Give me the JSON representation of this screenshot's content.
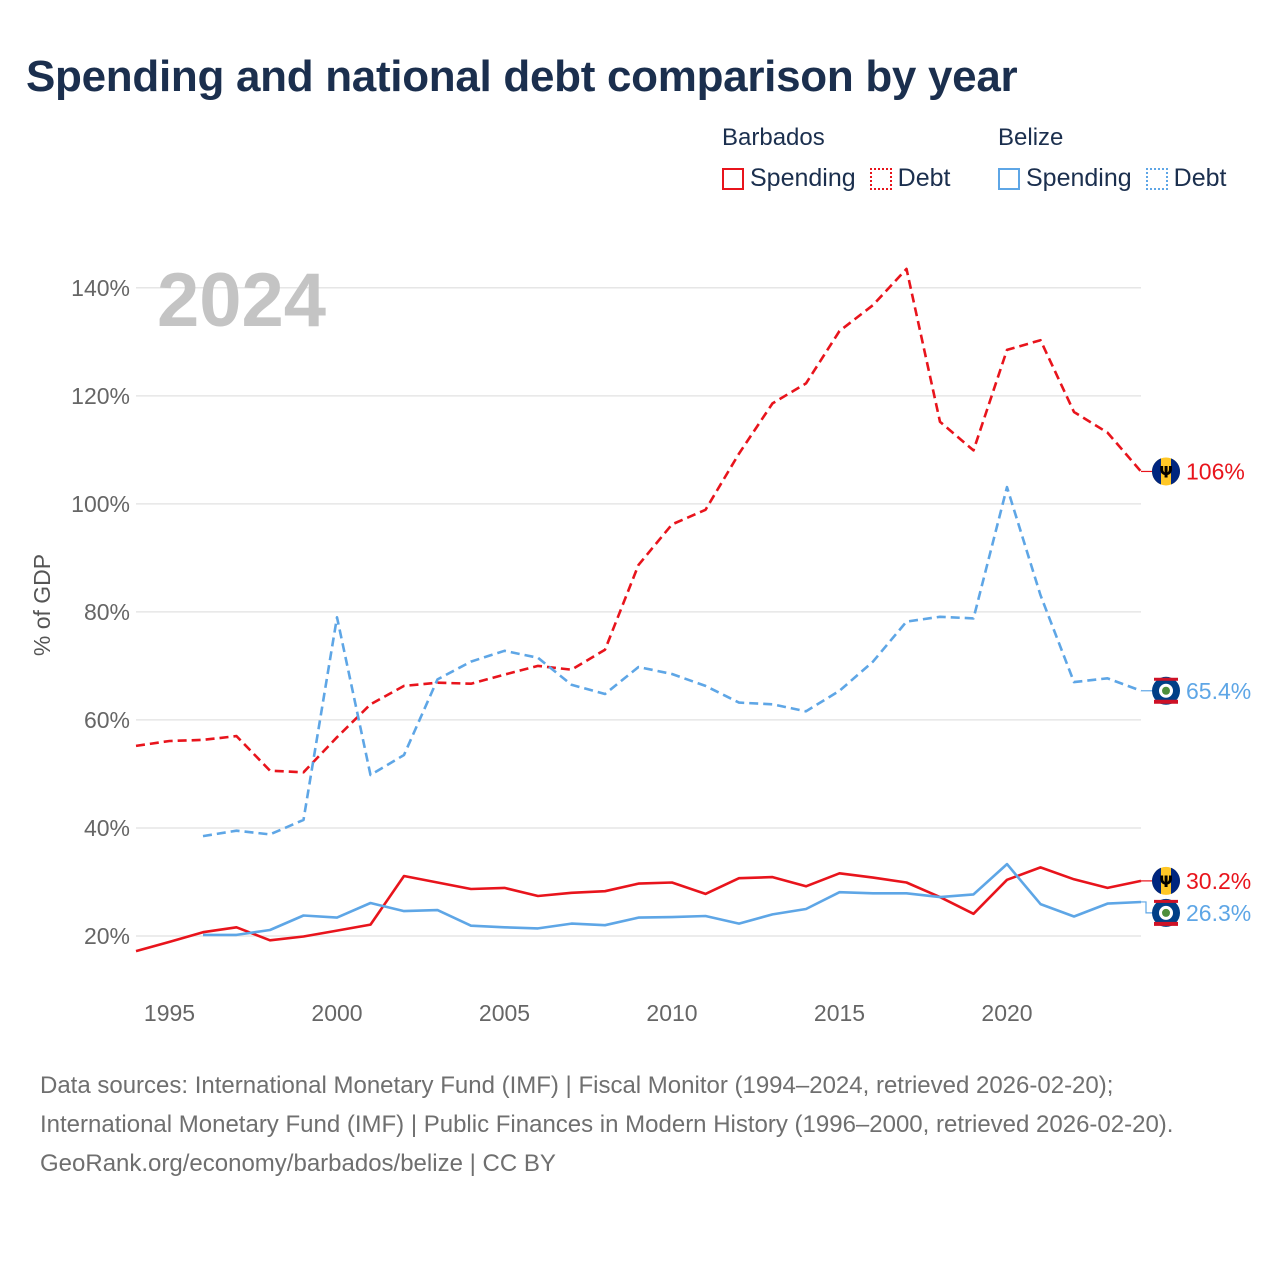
{
  "title": "Spending and national debt comparison by year",
  "year_label": "2024",
  "legend": [
    {
      "country": "Barbados",
      "color": "#e8141c",
      "spending_label": "Spending",
      "debt_label": "Debt"
    },
    {
      "country": "Belize",
      "color": "#5ea6e6",
      "spending_label": "Spending",
      "debt_label": "Debt"
    }
  ],
  "footer": {
    "sources": "Data sources: International Monetary Fund (IMF) | Fiscal Monitor (1994–2024, retrieved 2026-02-20); International Monetary Fund (IMF) | Public Finances in Modern History (1996–2000, retrieved 2026-02-20).",
    "credit": "GeoRank.org/economy/barbados/belize | CC BY"
  },
  "chart_data": {
    "type": "line",
    "ylabel": "% of GDP",
    "xlabel": "",
    "xlim": [
      1994,
      2024
    ],
    "ylim": [
      10,
      147
    ],
    "grid": true,
    "x_ticks": [
      1995,
      2000,
      2005,
      2010,
      2015,
      2020
    ],
    "y_ticks": [
      20,
      40,
      60,
      80,
      100,
      120,
      140
    ],
    "y_tick_suffix": "%",
    "series": [
      {
        "name": "Barbados Debt",
        "color": "#e8141c",
        "dashed": true,
        "end_label": "106%",
        "flag": "barbados",
        "x": [
          1994,
          1995,
          1996,
          1997,
          1998,
          1999,
          2000,
          2001,
          2002,
          2003,
          2004,
          2005,
          2006,
          2007,
          2008,
          2009,
          2010,
          2011,
          2012,
          2013,
          2014,
          2015,
          2016,
          2017,
          2018,
          2019,
          2020,
          2021,
          2022,
          2023,
          2024
        ],
        "values": [
          55.2,
          56.1,
          56.3,
          57.0,
          50.6,
          50.3,
          56.8,
          62.9,
          66.3,
          66.9,
          66.7,
          68.4,
          70.0,
          69.3,
          73.0,
          88.7,
          96.2,
          98.9,
          109.3,
          118.6,
          122.3,
          132.0,
          136.8,
          143.5,
          115.2,
          109.9,
          128.5,
          130.3,
          117.0,
          113.2,
          106.0
        ]
      },
      {
        "name": "Belize Debt",
        "color": "#5ea6e6",
        "dashed": true,
        "end_label": "65.4%",
        "flag": "belize",
        "x": [
          1996,
          1997,
          1998,
          1999,
          2000,
          2001,
          2002,
          2003,
          2004,
          2005,
          2006,
          2007,
          2008,
          2009,
          2010,
          2011,
          2012,
          2013,
          2014,
          2015,
          2016,
          2017,
          2018,
          2019,
          2020,
          2021,
          2022,
          2023,
          2024
        ],
        "values": [
          38.5,
          39.5,
          38.8,
          41.5,
          79.0,
          49.8,
          53.5,
          67.5,
          70.8,
          72.8,
          71.5,
          66.5,
          64.8,
          69.8,
          68.5,
          66.3,
          63.2,
          62.9,
          61.6,
          65.4,
          70.8,
          78.2,
          79.1,
          78.8,
          103.1,
          83.1,
          67.0,
          67.7,
          65.4
        ]
      },
      {
        "name": "Barbados Spending",
        "color": "#e8141c",
        "dashed": false,
        "end_label": "30.2%",
        "flag": "barbados",
        "x": [
          1994,
          1995,
          1996,
          1997,
          1998,
          1999,
          2000,
          2001,
          2002,
          2003,
          2004,
          2005,
          2006,
          2007,
          2008,
          2009,
          2010,
          2011,
          2012,
          2013,
          2014,
          2015,
          2016,
          2017,
          2018,
          2019,
          2020,
          2021,
          2022,
          2023,
          2024
        ],
        "values": [
          17.2,
          18.9,
          20.7,
          21.6,
          19.2,
          19.9,
          21.0,
          22.1,
          31.1,
          29.9,
          28.7,
          28.9,
          27.4,
          28.0,
          28.3,
          29.7,
          29.9,
          27.8,
          30.7,
          30.9,
          29.2,
          31.6,
          30.8,
          29.9,
          27.2,
          24.1,
          30.4,
          32.7,
          30.5,
          28.9,
          30.2
        ]
      },
      {
        "name": "Belize Spending",
        "color": "#5ea6e6",
        "dashed": false,
        "end_label": "26.3%",
        "flag": "belize",
        "x": [
          1996,
          1997,
          1998,
          1999,
          2000,
          2001,
          2002,
          2003,
          2004,
          2005,
          2006,
          2007,
          2008,
          2009,
          2010,
          2011,
          2012,
          2013,
          2014,
          2015,
          2016,
          2017,
          2018,
          2019,
          2020,
          2021,
          2022,
          2023,
          2024
        ],
        "values": [
          20.2,
          20.2,
          21.1,
          23.8,
          23.4,
          26.1,
          24.6,
          24.8,
          21.9,
          21.6,
          21.4,
          22.3,
          22.0,
          23.4,
          23.5,
          23.7,
          22.3,
          24.0,
          25.0,
          28.1,
          27.9,
          27.9,
          27.2,
          27.7,
          33.3,
          25.9,
          23.6,
          26.0,
          26.3
        ]
      }
    ]
  }
}
